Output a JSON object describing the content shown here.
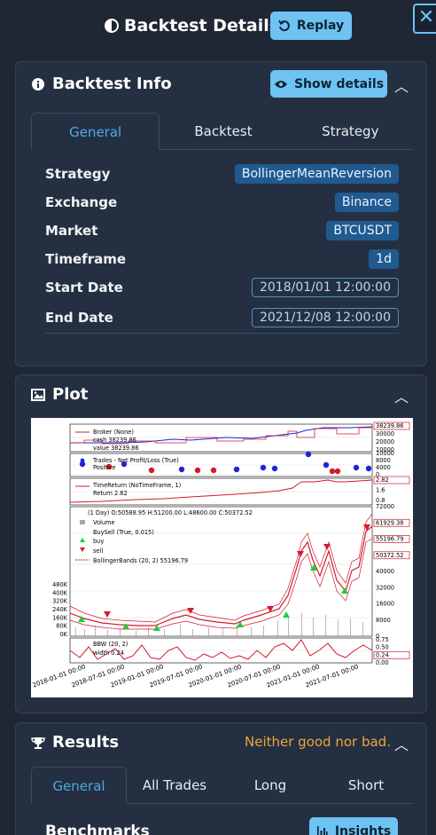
{
  "header": {
    "title": "Backtest Details",
    "replay_label": "Replay",
    "close_label": "✕"
  },
  "info": {
    "title": "Backtest Info",
    "show_details_label": "Show details",
    "tabs": [
      "General",
      "Backtest",
      "Strategy"
    ],
    "rows": [
      {
        "label": "Strategy",
        "value": "BollingerMeanReversion"
      },
      {
        "label": "Exchange",
        "value": "Binance"
      },
      {
        "label": "Market",
        "value": "BTCUSDT"
      },
      {
        "label": "Timeframe",
        "value": "1d"
      },
      {
        "label": "Start Date",
        "value": "2018/01/01 12:00:00"
      },
      {
        "label": "End Date",
        "value": "2021/12/08 12:00:00"
      }
    ]
  },
  "plot": {
    "title": "Plot",
    "labels": {
      "broker": "Broker (None)",
      "cash": "cash 38239.86",
      "value": "value 38239.86",
      "trades": "Trades - Net Profit/Loss (True)",
      "positive": "Positive",
      "timereturn": "TimeReturn (NoTimeFrame, 1)",
      "return": "Return 2.82",
      "ohlc": "(1 Day) O:50588.95 H:51200.00 L:48600.00 C:50372.52",
      "volume": "Volume",
      "buysell": "BuySell (True, 0.015)",
      "buy": "buy",
      "sell": "sell",
      "bbands": "BollingerBands (20, 2) 55196.79",
      "bbw": "BBW (20, 2)",
      "width": "width 0.24"
    },
    "right_ticks": {
      "broker": [
        "38239.86",
        "30000",
        "20000",
        "10000"
      ],
      "trades": [
        "10000",
        "8000",
        "4000",
        "0"
      ],
      "ret": [
        "2.82",
        "1.6",
        "0.8"
      ],
      "price": [
        "72000",
        "61929.38",
        "55196.79",
        "50372.52",
        "40000",
        "32000",
        "16000",
        "8000",
        "0"
      ],
      "bbw": [
        "0.75",
        "0.50",
        "0.24",
        "0.00"
      ]
    },
    "left_ticks": [
      "480K",
      "400K",
      "320K",
      "240K",
      "160K",
      "80K",
      "0K"
    ],
    "x_ticks": [
      "2018-01-01 00:00",
      "2018-07-01 00:00",
      "2019-01-01 00:00",
      "2019-07-01 00:00",
      "2020-01-01 00:00",
      "2020-07-01 00:00",
      "2021-01-01 00:00",
      "2021-07-01 00:00"
    ]
  },
  "results": {
    "title": "Results",
    "status": "Neither good nor bad.",
    "tabs": [
      "General",
      "All Trades",
      "Long",
      "Short"
    ],
    "benchmarks_label": "Benchmarks",
    "insights_label": "Insights"
  },
  "colors": {
    "accent": "#6ec3f2",
    "tab_active": "#4ea9e6",
    "badge": "#205a8f",
    "warning": "#f0a43a"
  }
}
